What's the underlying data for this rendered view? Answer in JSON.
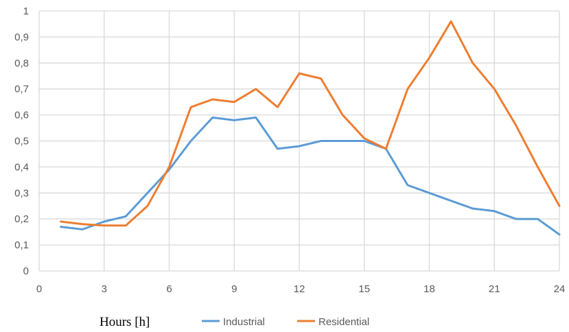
{
  "chart_data": {
    "type": "line",
    "title": "",
    "xlabel": "Hours [h]",
    "ylabel": "",
    "xlim": [
      0,
      24
    ],
    "ylim": [
      0,
      1
    ],
    "x_ticks": [
      0,
      3,
      6,
      9,
      12,
      15,
      18,
      21,
      24
    ],
    "x_tick_labels": [
      "0",
      "3",
      "6",
      "9",
      "12",
      "15",
      "18",
      "21",
      "24"
    ],
    "y_ticks": [
      0,
      0.1,
      0.2,
      0.3,
      0.4,
      0.5,
      0.6,
      0.7,
      0.8,
      0.9,
      1
    ],
    "y_tick_labels": [
      "0",
      "0,1",
      "0,2",
      "0,3",
      "0,4",
      "0,5",
      "0,6",
      "0,7",
      "0,8",
      "0,9",
      "1"
    ],
    "grid": true,
    "legend_position": "bottom",
    "x": [
      1,
      2,
      3,
      4,
      5,
      6,
      7,
      8,
      9,
      10,
      11,
      12,
      13,
      14,
      15,
      16,
      17,
      18,
      19,
      20,
      21,
      22,
      23,
      24
    ],
    "series": [
      {
        "name": "Industrial",
        "color": "#5b9bd5",
        "values": [
          0.17,
          0.16,
          0.19,
          0.21,
          0.3,
          0.39,
          0.5,
          0.59,
          0.58,
          0.59,
          0.47,
          0.48,
          0.5,
          0.5,
          0.5,
          0.47,
          0.33,
          0.3,
          0.27,
          0.24,
          0.23,
          0.2,
          0.2,
          0.14
        ]
      },
      {
        "name": "Residential",
        "color": "#ed7d31",
        "values": [
          0.19,
          0.18,
          0.175,
          0.175,
          0.25,
          0.4,
          0.63,
          0.66,
          0.65,
          0.7,
          0.63,
          0.76,
          0.74,
          0.6,
          0.51,
          0.47,
          0.7,
          0.82,
          0.96,
          0.8,
          0.7,
          0.56,
          0.4,
          0.25
        ]
      }
    ]
  }
}
